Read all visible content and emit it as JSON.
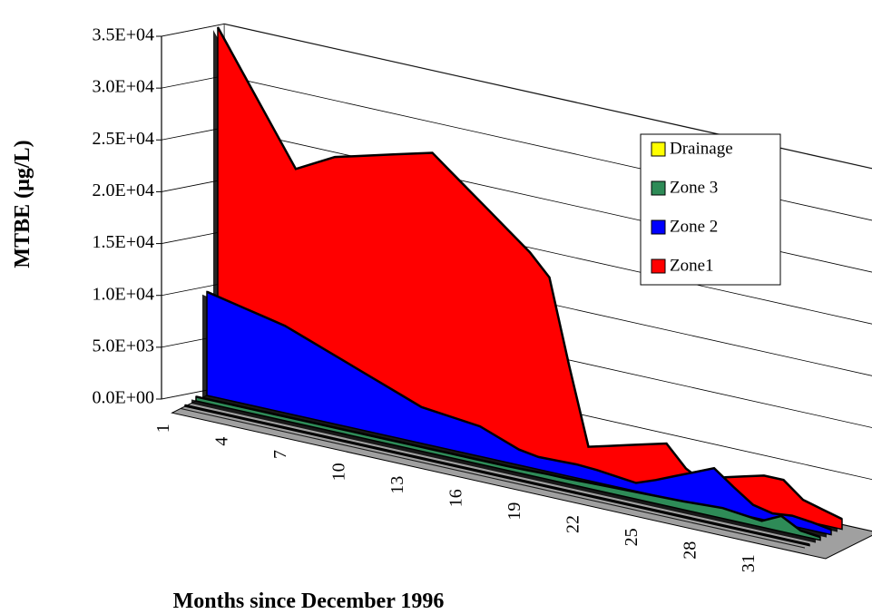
{
  "chart_data": {
    "type": "area3d",
    "y_label": "MTBE (µg/L)",
    "x_label": "Months since December 1996",
    "categories": [
      "1",
      null,
      null,
      "4",
      null,
      null,
      "7",
      null,
      null,
      "10",
      null,
      null,
      "13",
      null,
      null,
      "16",
      null,
      null,
      "19",
      null,
      null,
      "22",
      null,
      null,
      "25",
      null,
      null,
      "28",
      null,
      null,
      "31",
      null,
      null
    ],
    "series": [
      {
        "name": "Drainage",
        "color": "#ffff00",
        "values": [
          100,
          100,
          100,
          100,
          100,
          100,
          100,
          100,
          100,
          100,
          100,
          100,
          100,
          100,
          100,
          100,
          100,
          100,
          100,
          100,
          100,
          100,
          100,
          100,
          100,
          100,
          100,
          100,
          100,
          100,
          100,
          100,
          100
        ]
      },
      {
        "name": "Zone 3",
        "color": "#2e8b57",
        "values": [
          400,
          400,
          400,
          400,
          400,
          400,
          400,
          400,
          400,
          400,
          400,
          400,
          400,
          400,
          400,
          400,
          400,
          450,
          500,
          500,
          550,
          600,
          650,
          700,
          750,
          800,
          900,
          1000,
          800,
          600,
          1500,
          500,
          300
        ]
      },
      {
        "name": "Zone 2",
        "color": "#0000ff",
        "values": [
          10000,
          9600,
          9200,
          8800,
          8400,
          7700,
          7000,
          6300,
          5600,
          4900,
          4200,
          3500,
          3300,
          3100,
          2900,
          2200,
          1500,
          1200,
          1250,
          1300,
          1200,
          1000,
          800,
          1500,
          2300,
          3100,
          3900,
          2500,
          1200,
          800,
          1000,
          800,
          500
        ]
      },
      {
        "name": "Zone1",
        "color": "#ff0000",
        "values": [
          35000,
          32000,
          29000,
          26000,
          23000,
          24000,
          25000,
          25500,
          26000,
          26500,
          27000,
          27500,
          26000,
          24500,
          23000,
          21500,
          20000,
          18000,
          10000,
          2500,
          3000,
          3500,
          4000,
          4500,
          2500,
          1500,
          2500,
          3000,
          3500,
          3500,
          2000,
          1500,
          1000
        ]
      }
    ],
    "ylim": [
      0,
      35000
    ],
    "yticks": [
      {
        "value": 0,
        "label": "0.0E+00"
      },
      {
        "value": 5000,
        "label": "5.0E+03"
      },
      {
        "value": 10000,
        "label": "1.0E+04"
      },
      {
        "value": 15000,
        "label": "1.5E+04"
      },
      {
        "value": 20000,
        "label": "2.0E+04"
      },
      {
        "value": 25000,
        "label": "2.5E+04"
      },
      {
        "value": 30000,
        "label": "3.0E+04"
      },
      {
        "value": 35000,
        "label": "3.5E+04"
      }
    ],
    "grid": true
  }
}
